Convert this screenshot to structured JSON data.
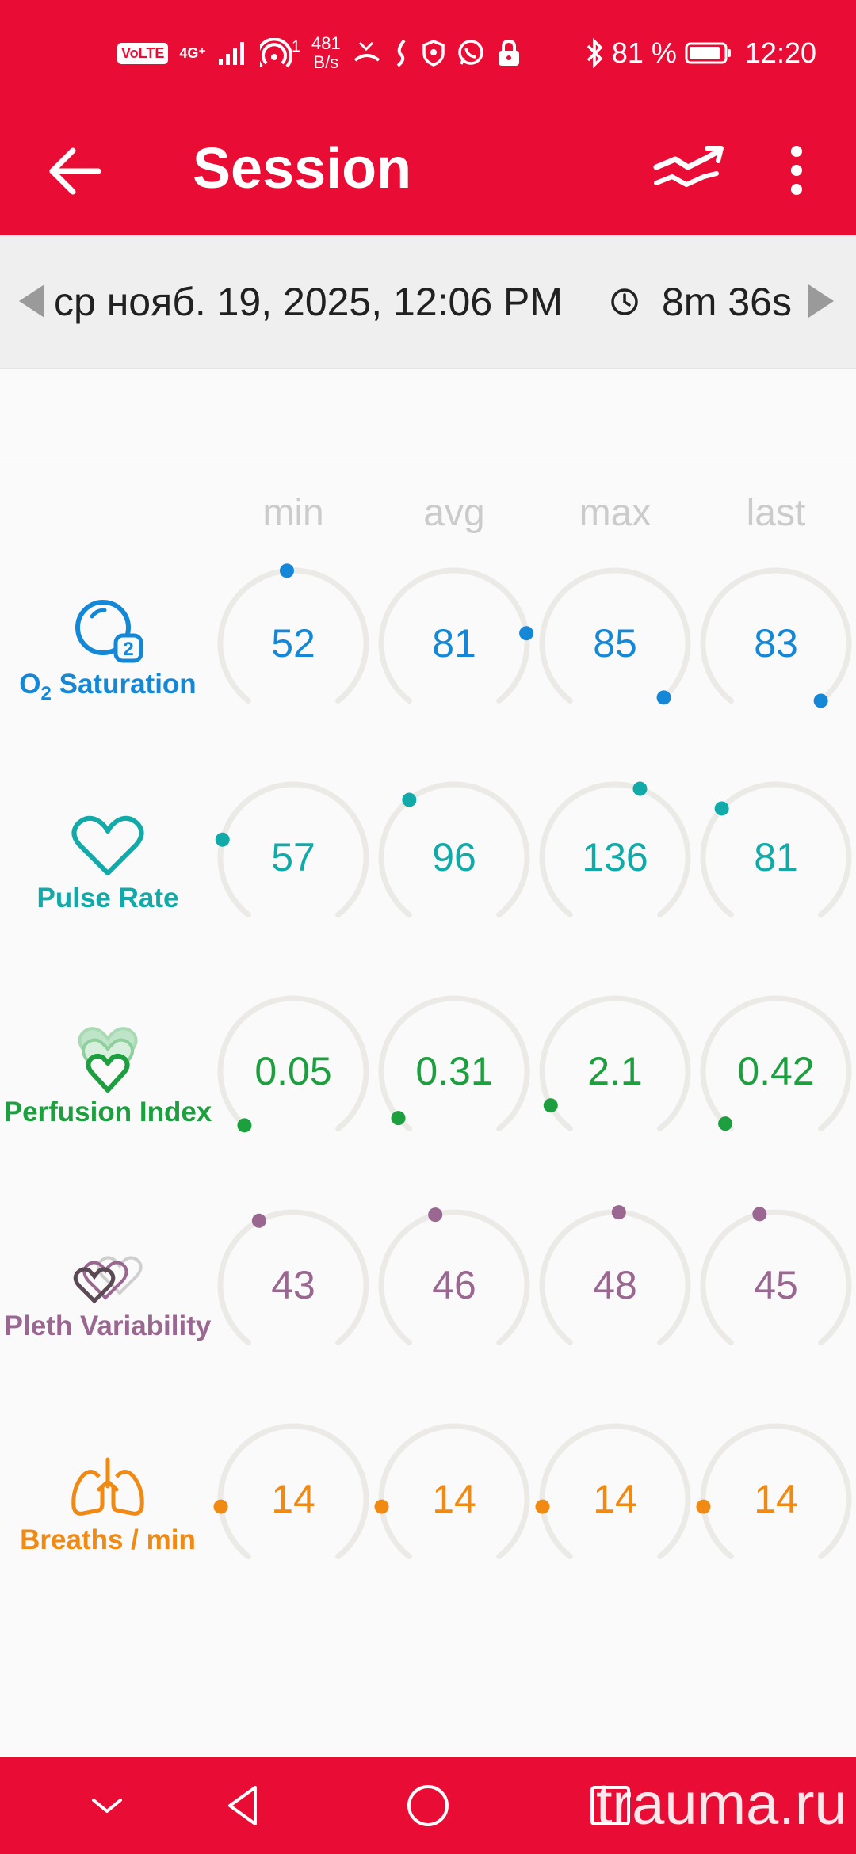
{
  "status_bar": {
    "volte": "VoLTE",
    "network": "4G⁺",
    "hotspot_count": "1",
    "speed_value": "481",
    "speed_unit": "B/s",
    "battery": "81 %",
    "time": "12:20"
  },
  "app_bar": {
    "title": "Session"
  },
  "session": {
    "date": "ср нояб. 19, 2025, 12:06 PM",
    "duration": "8m 36s"
  },
  "columns": [
    "min",
    "avg",
    "max",
    "last"
  ],
  "metrics": [
    {
      "label_main": "O",
      "label_sub": "2",
      "label_rest": " Saturation",
      "icon": "o2-saturation-icon",
      "color": "#1487d6",
      "values": [
        "52",
        "81",
        "85",
        "83"
      ],
      "dot_angles": [
        -5,
        82,
        138,
        142
      ]
    },
    {
      "label": "Pulse Rate",
      "icon": "heart-icon",
      "color": "#12aaa9",
      "values": [
        "57",
        "96",
        "136",
        "81"
      ],
      "dot_angles": [
        -76,
        -38,
        20,
        -48
      ]
    },
    {
      "label": "Perfusion Index",
      "icon": "perfusion-hearts-icon",
      "color": "#1d9f3f",
      "values": [
        "0.05",
        "0.31",
        "2.1",
        "0.42"
      ],
      "dot_angles": [
        -138,
        -130,
        -118,
        -136
      ]
    },
    {
      "label": "Pleth Variability",
      "icon": "pleth-hearts-icon",
      "color": "#9a6791",
      "values": [
        "43",
        "46",
        "48",
        "45"
      ],
      "dot_angles": [
        -28,
        -15,
        3,
        -13
      ]
    },
    {
      "label": "Breaths / min",
      "icon": "lungs-icon",
      "color": "#f08a12",
      "values": [
        "14",
        "14",
        "14",
        "14"
      ],
      "dot_angles": [
        -96,
        -96,
        -96,
        -96
      ]
    }
  ],
  "watermark": "trauma.ru"
}
